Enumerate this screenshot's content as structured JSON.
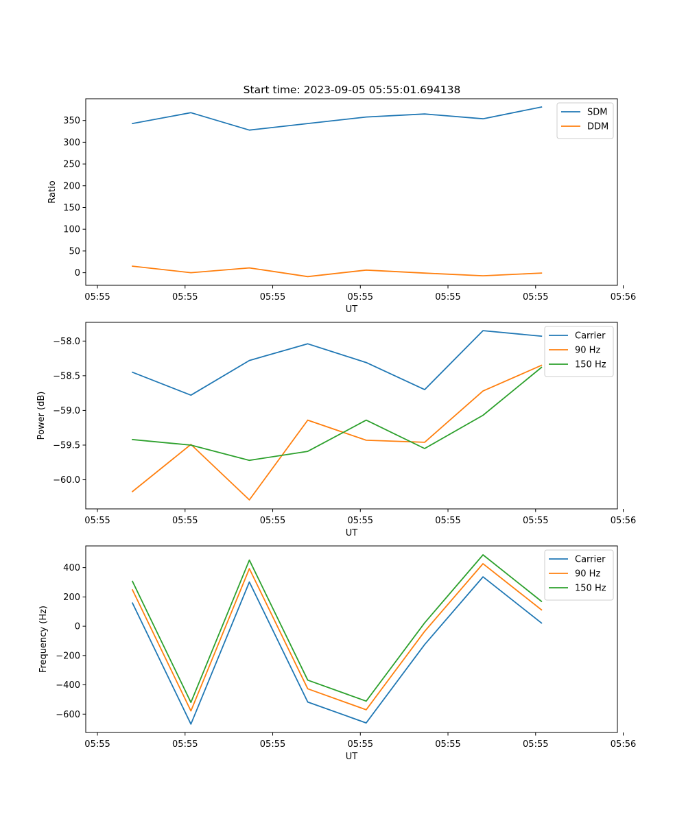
{
  "title": "Start time: 2023-09-05 05:55:01.694138",
  "colors": {
    "blue": "#1f77b4",
    "orange": "#ff7f0e",
    "green": "#2ca02c"
  },
  "chart_data": [
    {
      "type": "line",
      "xlabel": "UT",
      "ylabel": "Ratio",
      "x": [
        1,
        2,
        3,
        4,
        5,
        6,
        7,
        8
      ],
      "xlim": [
        0.2,
        9.3
      ],
      "ylim": [
        -29,
        400
      ],
      "xticks": [
        {
          "value": 0.4,
          "label": "05:55"
        },
        {
          "value": 1.9,
          "label": "05:55"
        },
        {
          "value": 3.4,
          "label": "05:55"
        },
        {
          "value": 4.9,
          "label": "05:55"
        },
        {
          "value": 6.4,
          "label": "05:55"
        },
        {
          "value": 7.9,
          "label": "05:55"
        },
        {
          "value": 9.4,
          "label": "05:56"
        }
      ],
      "yticks": [
        {
          "value": 0,
          "label": "0"
        },
        {
          "value": 50,
          "label": "50"
        },
        {
          "value": 100,
          "label": "100"
        },
        {
          "value": 150,
          "label": "150"
        },
        {
          "value": 200,
          "label": "200"
        },
        {
          "value": 250,
          "label": "250"
        },
        {
          "value": 300,
          "label": "300"
        },
        {
          "value": 350,
          "label": "350"
        }
      ],
      "legend_position": "top-right",
      "series": [
        {
          "name": "SDM",
          "color": "#1f77b4",
          "values": [
            343,
            368,
            328,
            343,
            358,
            365,
            354,
            381
          ]
        },
        {
          "name": "DDM",
          "color": "#ff7f0e",
          "values": [
            15,
            0,
            11,
            -9,
            6,
            -1,
            -7,
            -1
          ]
        }
      ]
    },
    {
      "type": "line",
      "xlabel": "UT",
      "ylabel": "Power (dB)",
      "x": [
        1,
        2,
        3,
        4,
        5,
        6,
        7,
        8
      ],
      "xlim": [
        0.2,
        9.3
      ],
      "ylim": [
        -60.42,
        -57.73
      ],
      "xticks": [
        {
          "value": 0.4,
          "label": "05:55"
        },
        {
          "value": 1.9,
          "label": "05:55"
        },
        {
          "value": 3.4,
          "label": "05:55"
        },
        {
          "value": 4.9,
          "label": "05:55"
        },
        {
          "value": 6.4,
          "label": "05:55"
        },
        {
          "value": 7.9,
          "label": "05:55"
        },
        {
          "value": 9.4,
          "label": "05:56"
        }
      ],
      "yticks": [
        {
          "value": -60.0,
          "label": "−60.0"
        },
        {
          "value": -59.5,
          "label": "−59.5"
        },
        {
          "value": -59.0,
          "label": "−59.0"
        },
        {
          "value": -58.5,
          "label": "−58.5"
        },
        {
          "value": -58.0,
          "label": "−58.0"
        }
      ],
      "legend_position": "top-right",
      "series": [
        {
          "name": "Carrier",
          "color": "#1f77b4",
          "values": [
            -58.45,
            -58.78,
            -58.28,
            -58.04,
            -58.31,
            -58.7,
            -57.85,
            -57.93
          ]
        },
        {
          "name": "90 Hz",
          "color": "#ff7f0e",
          "values": [
            -60.17,
            -59.49,
            -60.29,
            -59.14,
            -59.43,
            -59.46,
            -58.72,
            -58.35
          ]
        },
        {
          "name": "150 Hz",
          "color": "#2ca02c",
          "values": [
            -59.42,
            -59.5,
            -59.72,
            -59.59,
            -59.14,
            -59.55,
            -59.07,
            -58.38
          ]
        }
      ]
    },
    {
      "type": "line",
      "xlabel": "UT",
      "ylabel": "Frequency (Hz)",
      "x": [
        1,
        2,
        3,
        4,
        5,
        6,
        7,
        8
      ],
      "xlim": [
        0.2,
        9.3
      ],
      "ylim": [
        -725,
        548
      ],
      "xticks": [
        {
          "value": 0.4,
          "label": "05:55"
        },
        {
          "value": 1.9,
          "label": "05:55"
        },
        {
          "value": 3.4,
          "label": "05:55"
        },
        {
          "value": 4.9,
          "label": "05:55"
        },
        {
          "value": 6.4,
          "label": "05:55"
        },
        {
          "value": 7.9,
          "label": "05:55"
        },
        {
          "value": 9.4,
          "label": "05:56"
        }
      ],
      "yticks": [
        {
          "value": -600,
          "label": "−600"
        },
        {
          "value": -400,
          "label": "−400"
        },
        {
          "value": -200,
          "label": "−200"
        },
        {
          "value": 0,
          "label": "0"
        },
        {
          "value": 200,
          "label": "200"
        },
        {
          "value": 400,
          "label": "400"
        }
      ],
      "legend_position": "top-right",
      "series": [
        {
          "name": "Carrier",
          "color": "#1f77b4",
          "values": [
            158,
            -668,
            302,
            -517,
            -660,
            -125,
            337,
            22
          ]
        },
        {
          "name": "90 Hz",
          "color": "#ff7f0e",
          "values": [
            248,
            -578,
            393,
            -427,
            -570,
            -35,
            427,
            112
          ]
        },
        {
          "name": "150 Hz",
          "color": "#2ca02c",
          "values": [
            306,
            -520,
            451,
            -368,
            -511,
            23,
            487,
            170
          ]
        }
      ]
    }
  ]
}
